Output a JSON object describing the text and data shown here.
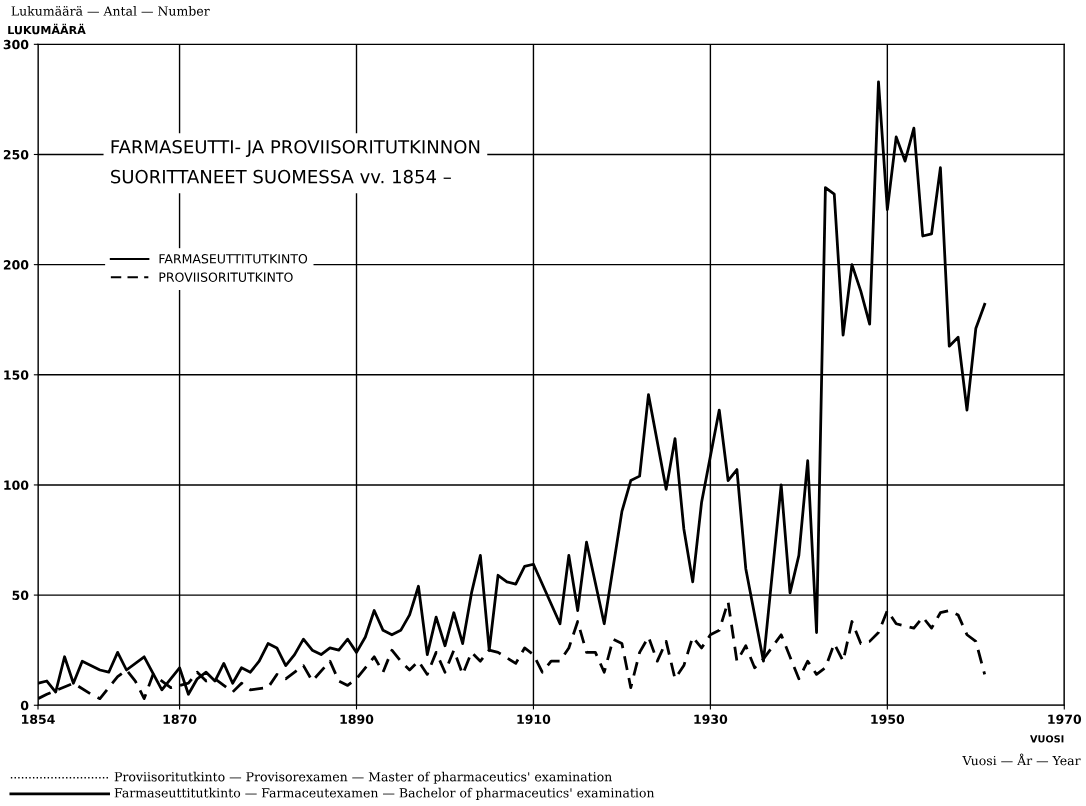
{
  "chart_data": {
    "type": "line",
    "title": "FARMASEUTTI- JA PROVIISORITUTKINNON\nSUORITTANEET SUOMESSA vv. 1854 –",
    "ylabel": "LUKUMÄÄRÄ",
    "xlabel": "VUOSI",
    "annotations": [
      "Lukumäärä — Antal — Number",
      "Vuosi — År — Year",
      "Proviisoritutkinto — Provisorexamen — Master of pharmaceutics' examination",
      "Farmaseuttitutkinto — Farmaceutexamen — Bachelor of pharmaceutics' examination"
    ],
    "xlim": [
      1854,
      1970
    ],
    "xticks": [
      1854,
      1870,
      1890,
      1910,
      1930,
      1950,
      1970
    ],
    "ylim": [
      0,
      300
    ],
    "yticks": [
      0,
      50,
      100,
      150,
      200,
      250,
      300
    ],
    "grid": true,
    "legend": "top left",
    "series": [
      {
        "name": "FARMASEUTTITUTKINTO",
        "color": "#000000",
        "line_style": "solid",
        "x": [
          1854,
          1855,
          1856,
          1857,
          1858,
          1859,
          1861,
          1862,
          1863,
          1864,
          1866,
          1868,
          1870,
          1871,
          1872,
          1873,
          1874,
          1875,
          1876,
          1877,
          1878,
          1879,
          1880,
          1881,
          1882,
          1883,
          1884,
          1885,
          1886,
          1887,
          1888,
          1889,
          1890,
          1891,
          1892,
          1893,
          1894,
          1895,
          1896,
          1897,
          1898,
          1899,
          1900,
          1901,
          1902,
          1903,
          1904,
          1905,
          1906,
          1907,
          1908,
          1909,
          1910,
          1913,
          1914,
          1915,
          1916,
          1918,
          1920,
          1921,
          1922,
          1923,
          1925,
          1926,
          1927,
          1928,
          1929,
          1931,
          1932,
          1933,
          1934,
          1936,
          1938,
          1939,
          1940,
          1941,
          1942,
          1943,
          1944,
          1945,
          1946,
          1947,
          1948,
          1949,
          1950,
          1951,
          1952,
          1953,
          1954,
          1955,
          1956,
          1957,
          1958,
          1959,
          1960,
          1961
        ],
        "values": [
          10,
          11,
          6,
          22,
          10,
          20,
          16,
          15,
          24,
          16,
          22,
          7,
          17,
          5,
          12,
          15,
          11,
          19,
          10,
          17,
          15,
          20,
          28,
          26,
          18,
          23,
          30,
          25,
          23,
          26,
          25,
          30,
          24,
          31,
          43,
          34,
          32,
          34,
          41,
          54,
          23,
          40,
          27,
          42,
          28,
          51,
          68,
          25,
          59,
          56,
          55,
          63,
          64,
          37,
          68,
          43,
          74,
          37,
          88,
          102,
          104,
          141,
          98,
          121,
          80,
          56,
          92,
          134,
          102,
          107,
          62,
          20,
          100,
          51,
          68,
          111,
          33,
          235,
          232,
          168,
          200,
          188,
          173,
          283,
          225,
          258,
          247,
          262,
          213,
          214,
          244,
          163,
          167,
          134,
          171,
          182
        ]
      },
      {
        "name": "PROVIISORITUTKINTO",
        "color": "#000000",
        "line_style": "dashed",
        "x": [
          1854,
          1855,
          1858,
          1860,
          1861,
          1863,
          1864,
          1865,
          1866,
          1867,
          1869,
          1870,
          1871,
          1872,
          1873,
          1874,
          1876,
          1877,
          1878,
          1880,
          1881,
          1882,
          1884,
          1885,
          1887,
          1888,
          1889,
          1890,
          1892,
          1893,
          1894,
          1895,
          1896,
          1897,
          1898,
          1899,
          1900,
          1901,
          1902,
          1903,
          1904,
          1905,
          1906,
          1908,
          1909,
          1910,
          1911,
          1912,
          1913,
          1914,
          1915,
          1916,
          1917,
          1918,
          1919,
          1920,
          1921,
          1922,
          1923,
          1924,
          1925,
          1926,
          1927,
          1928,
          1929,
          1930,
          1931,
          1932,
          1933,
          1934,
          1935,
          1936,
          1938,
          1940,
          1941,
          1942,
          1943,
          1944,
          1945,
          1946,
          1947,
          1948,
          1949,
          1950,
          1951,
          1953,
          1954,
          1955,
          1956,
          1957,
          1958,
          1959,
          1960,
          1961
        ],
        "values": [
          3,
          5,
          10,
          5,
          3,
          13,
          16,
          11,
          3,
          14,
          8,
          9,
          10,
          15,
          11,
          12,
          6,
          10,
          7,
          8,
          14,
          12,
          18,
          11,
          20,
          11,
          9,
          12,
          22,
          15,
          25,
          20,
          16,
          20,
          14,
          24,
          15,
          25,
          14,
          24,
          20,
          25,
          24,
          19,
          26,
          23,
          15,
          20,
          20,
          26,
          38,
          24,
          24,
          15,
          30,
          28,
          8,
          24,
          31,
          20,
          29,
          12,
          18,
          31,
          26,
          32,
          34,
          47,
          20,
          27,
          17,
          21,
          32,
          12,
          20,
          14,
          17,
          28,
          20,
          38,
          28,
          29,
          33,
          43,
          37,
          35,
          40,
          35,
          42,
          43,
          41,
          32,
          29,
          14
        ]
      }
    ]
  }
}
